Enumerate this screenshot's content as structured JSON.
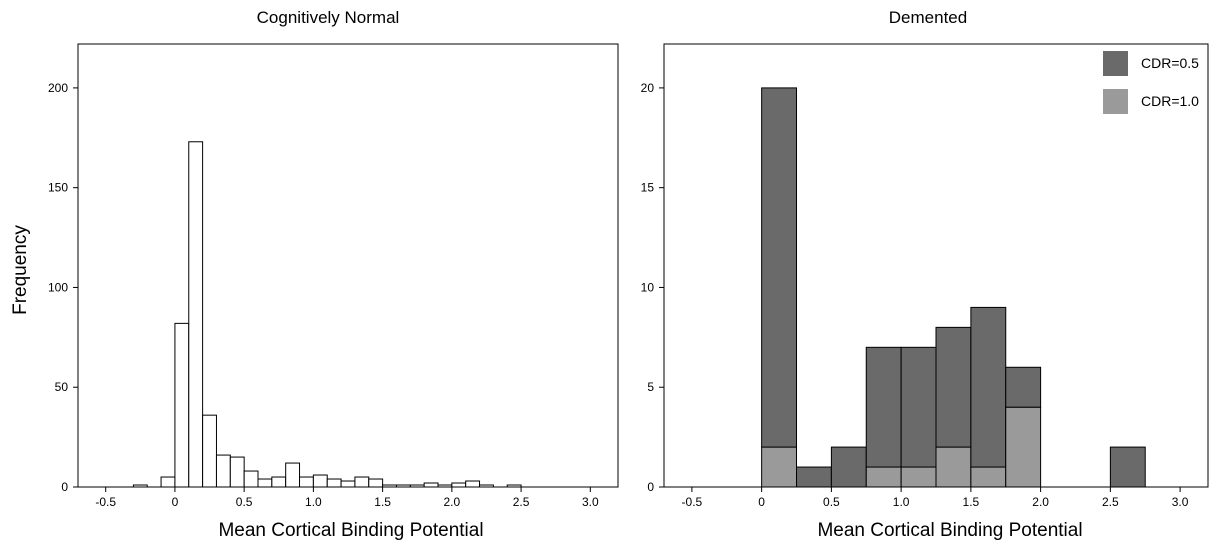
{
  "shared": {
    "ylabel": "Frequency"
  },
  "chart_data": [
    {
      "type": "bar",
      "title": "Cognitively Normal",
      "xlabel": "Mean Cortical Binding Potential",
      "ylabel": "Frequency",
      "xlim": [
        -0.7,
        3.2
      ],
      "ylim": [
        0,
        222
      ],
      "xticks": [
        "-0.5",
        "0",
        "0.5",
        "1.0",
        "1.5",
        "2.0",
        "2.5",
        "3.0"
      ],
      "yticks": [
        "0",
        "50",
        "100",
        "150",
        "200"
      ],
      "bin_width": 0.1,
      "bars": [
        {
          "x": -0.25,
          "value": 1
        },
        {
          "x": -0.05,
          "value": 5
        },
        {
          "x": 0.05,
          "value": 82
        },
        {
          "x": 0.15,
          "value": 173
        },
        {
          "x": 0.25,
          "value": 36
        },
        {
          "x": 0.35,
          "value": 16
        },
        {
          "x": 0.45,
          "value": 15
        },
        {
          "x": 0.55,
          "value": 8
        },
        {
          "x": 0.65,
          "value": 4
        },
        {
          "x": 0.75,
          "value": 5
        },
        {
          "x": 0.85,
          "value": 12
        },
        {
          "x": 0.95,
          "value": 5
        },
        {
          "x": 1.05,
          "value": 6
        },
        {
          "x": 1.15,
          "value": 4
        },
        {
          "x": 1.25,
          "value": 3
        },
        {
          "x": 1.35,
          "value": 5
        },
        {
          "x": 1.45,
          "value": 4
        },
        {
          "x": 1.55,
          "value": 1
        },
        {
          "x": 1.65,
          "value": 1
        },
        {
          "x": 1.75,
          "value": 1
        },
        {
          "x": 1.85,
          "value": 2
        },
        {
          "x": 1.95,
          "value": 1
        },
        {
          "x": 2.05,
          "value": 2
        },
        {
          "x": 2.15,
          "value": 3
        },
        {
          "x": 2.25,
          "value": 1
        },
        {
          "x": 2.45,
          "value": 1
        }
      ],
      "bar_fill": "#ffffff",
      "bar_stroke": "#000000"
    },
    {
      "type": "bar",
      "stacked": true,
      "title": "Demented",
      "xlabel": "Mean Cortical Binding Potential",
      "ylabel": "",
      "xlim": [
        -0.7,
        3.2
      ],
      "ylim": [
        0,
        22.2
      ],
      "xticks": [
        "-0.5",
        "0",
        "0.5",
        "1.0",
        "1.5",
        "2.0",
        "2.5",
        "3.0"
      ],
      "yticks": [
        "0",
        "5",
        "10",
        "15",
        "20"
      ],
      "bin_width": 0.25,
      "bin_centers": [
        0.125,
        0.375,
        0.625,
        0.875,
        1.125,
        1.375,
        1.625,
        1.875,
        2.625
      ],
      "series": [
        {
          "name": "CDR=1.0",
          "color": "#9a9a9a",
          "values": [
            2,
            0,
            0,
            1,
            1,
            2,
            1,
            4,
            0
          ]
        },
        {
          "name": "CDR=0.5",
          "color": "#6a6a6a",
          "values": [
            18,
            1,
            2,
            6,
            6,
            6,
            8,
            2,
            2
          ]
        }
      ],
      "legend": {
        "position": "top-right",
        "entries": [
          {
            "label": "CDR=0.5",
            "color": "#6a6a6a"
          },
          {
            "label": "CDR=1.0",
            "color": "#9a9a9a"
          }
        ]
      }
    }
  ]
}
